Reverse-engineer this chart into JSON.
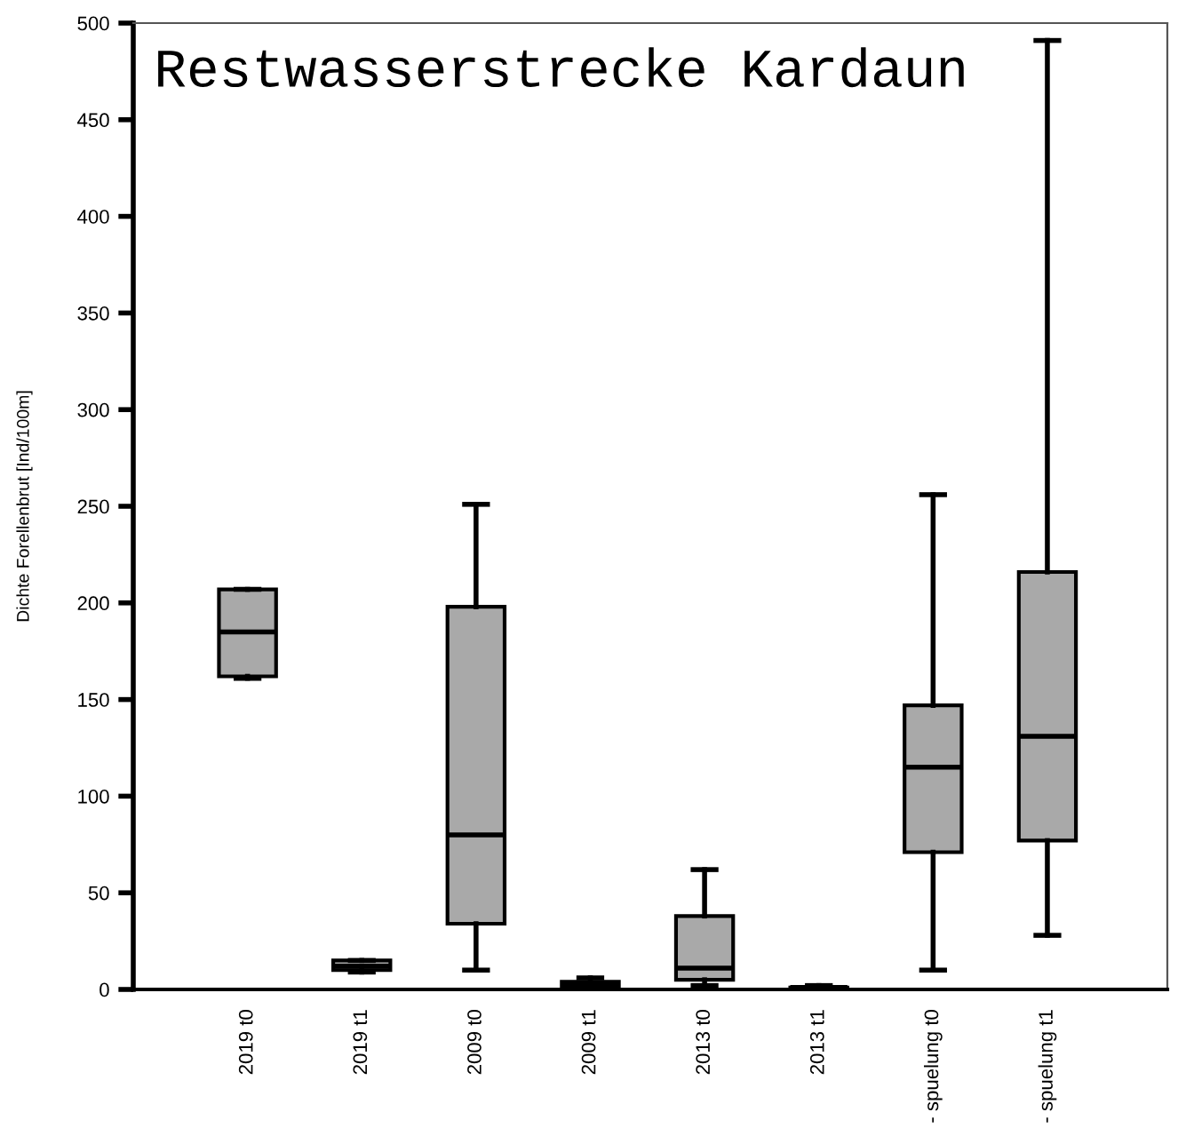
{
  "chart_data": {
    "type": "box",
    "title": "Restwasserstrecke Kardaun",
    "ylabel": "Dichte Forellenbrut [Ind/100m]",
    "categories": [
      "2019 t0",
      "2019 t1",
      "2009 t0",
      "2009 t1",
      "2013 t0",
      "2013 t1",
      "- spuelung t0",
      "- spuelung t1"
    ],
    "color": "#a9a9a9",
    "boxes": [
      {
        "low": 161,
        "q1": 162,
        "median": 185,
        "q3": 207,
        "high": 207
      },
      {
        "low": 9,
        "q1": 10,
        "median": 12,
        "q3": 15,
        "high": 15
      },
      {
        "low": 10,
        "q1": 34,
        "median": 80,
        "q3": 198,
        "high": 251
      },
      {
        "low": 0,
        "q1": 1,
        "median": 3,
        "q3": 4,
        "high": 6
      },
      {
        "low": 2,
        "q1": 5,
        "median": 11,
        "q3": 38,
        "high": 62
      },
      {
        "low": 0,
        "q1": 0.5,
        "median": 1,
        "q3": 1,
        "high": 2
      },
      {
        "low": 10,
        "q1": 71,
        "median": 115,
        "q3": 147,
        "high": 256
      },
      {
        "low": 28,
        "q1": 77,
        "median": 131,
        "q3": 216,
        "high": 491
      }
    ],
    "ylim": [
      0,
      500
    ],
    "yticks": [
      0,
      50,
      100,
      150,
      200,
      250,
      300,
      350,
      400,
      450,
      500
    ],
    "grid": false
  }
}
